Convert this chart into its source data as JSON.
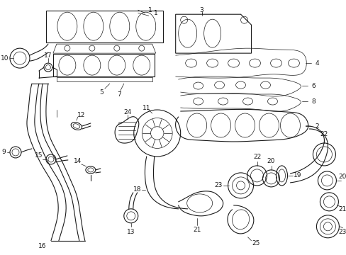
{
  "bg_color": "#ffffff",
  "line_color": "#1a1a1a",
  "figsize": [
    4.89,
    3.6
  ],
  "dpi": 100,
  "lw": 0.8,
  "lw_thin": 0.5,
  "lw_thick": 1.1,
  "font_size": 6.5
}
